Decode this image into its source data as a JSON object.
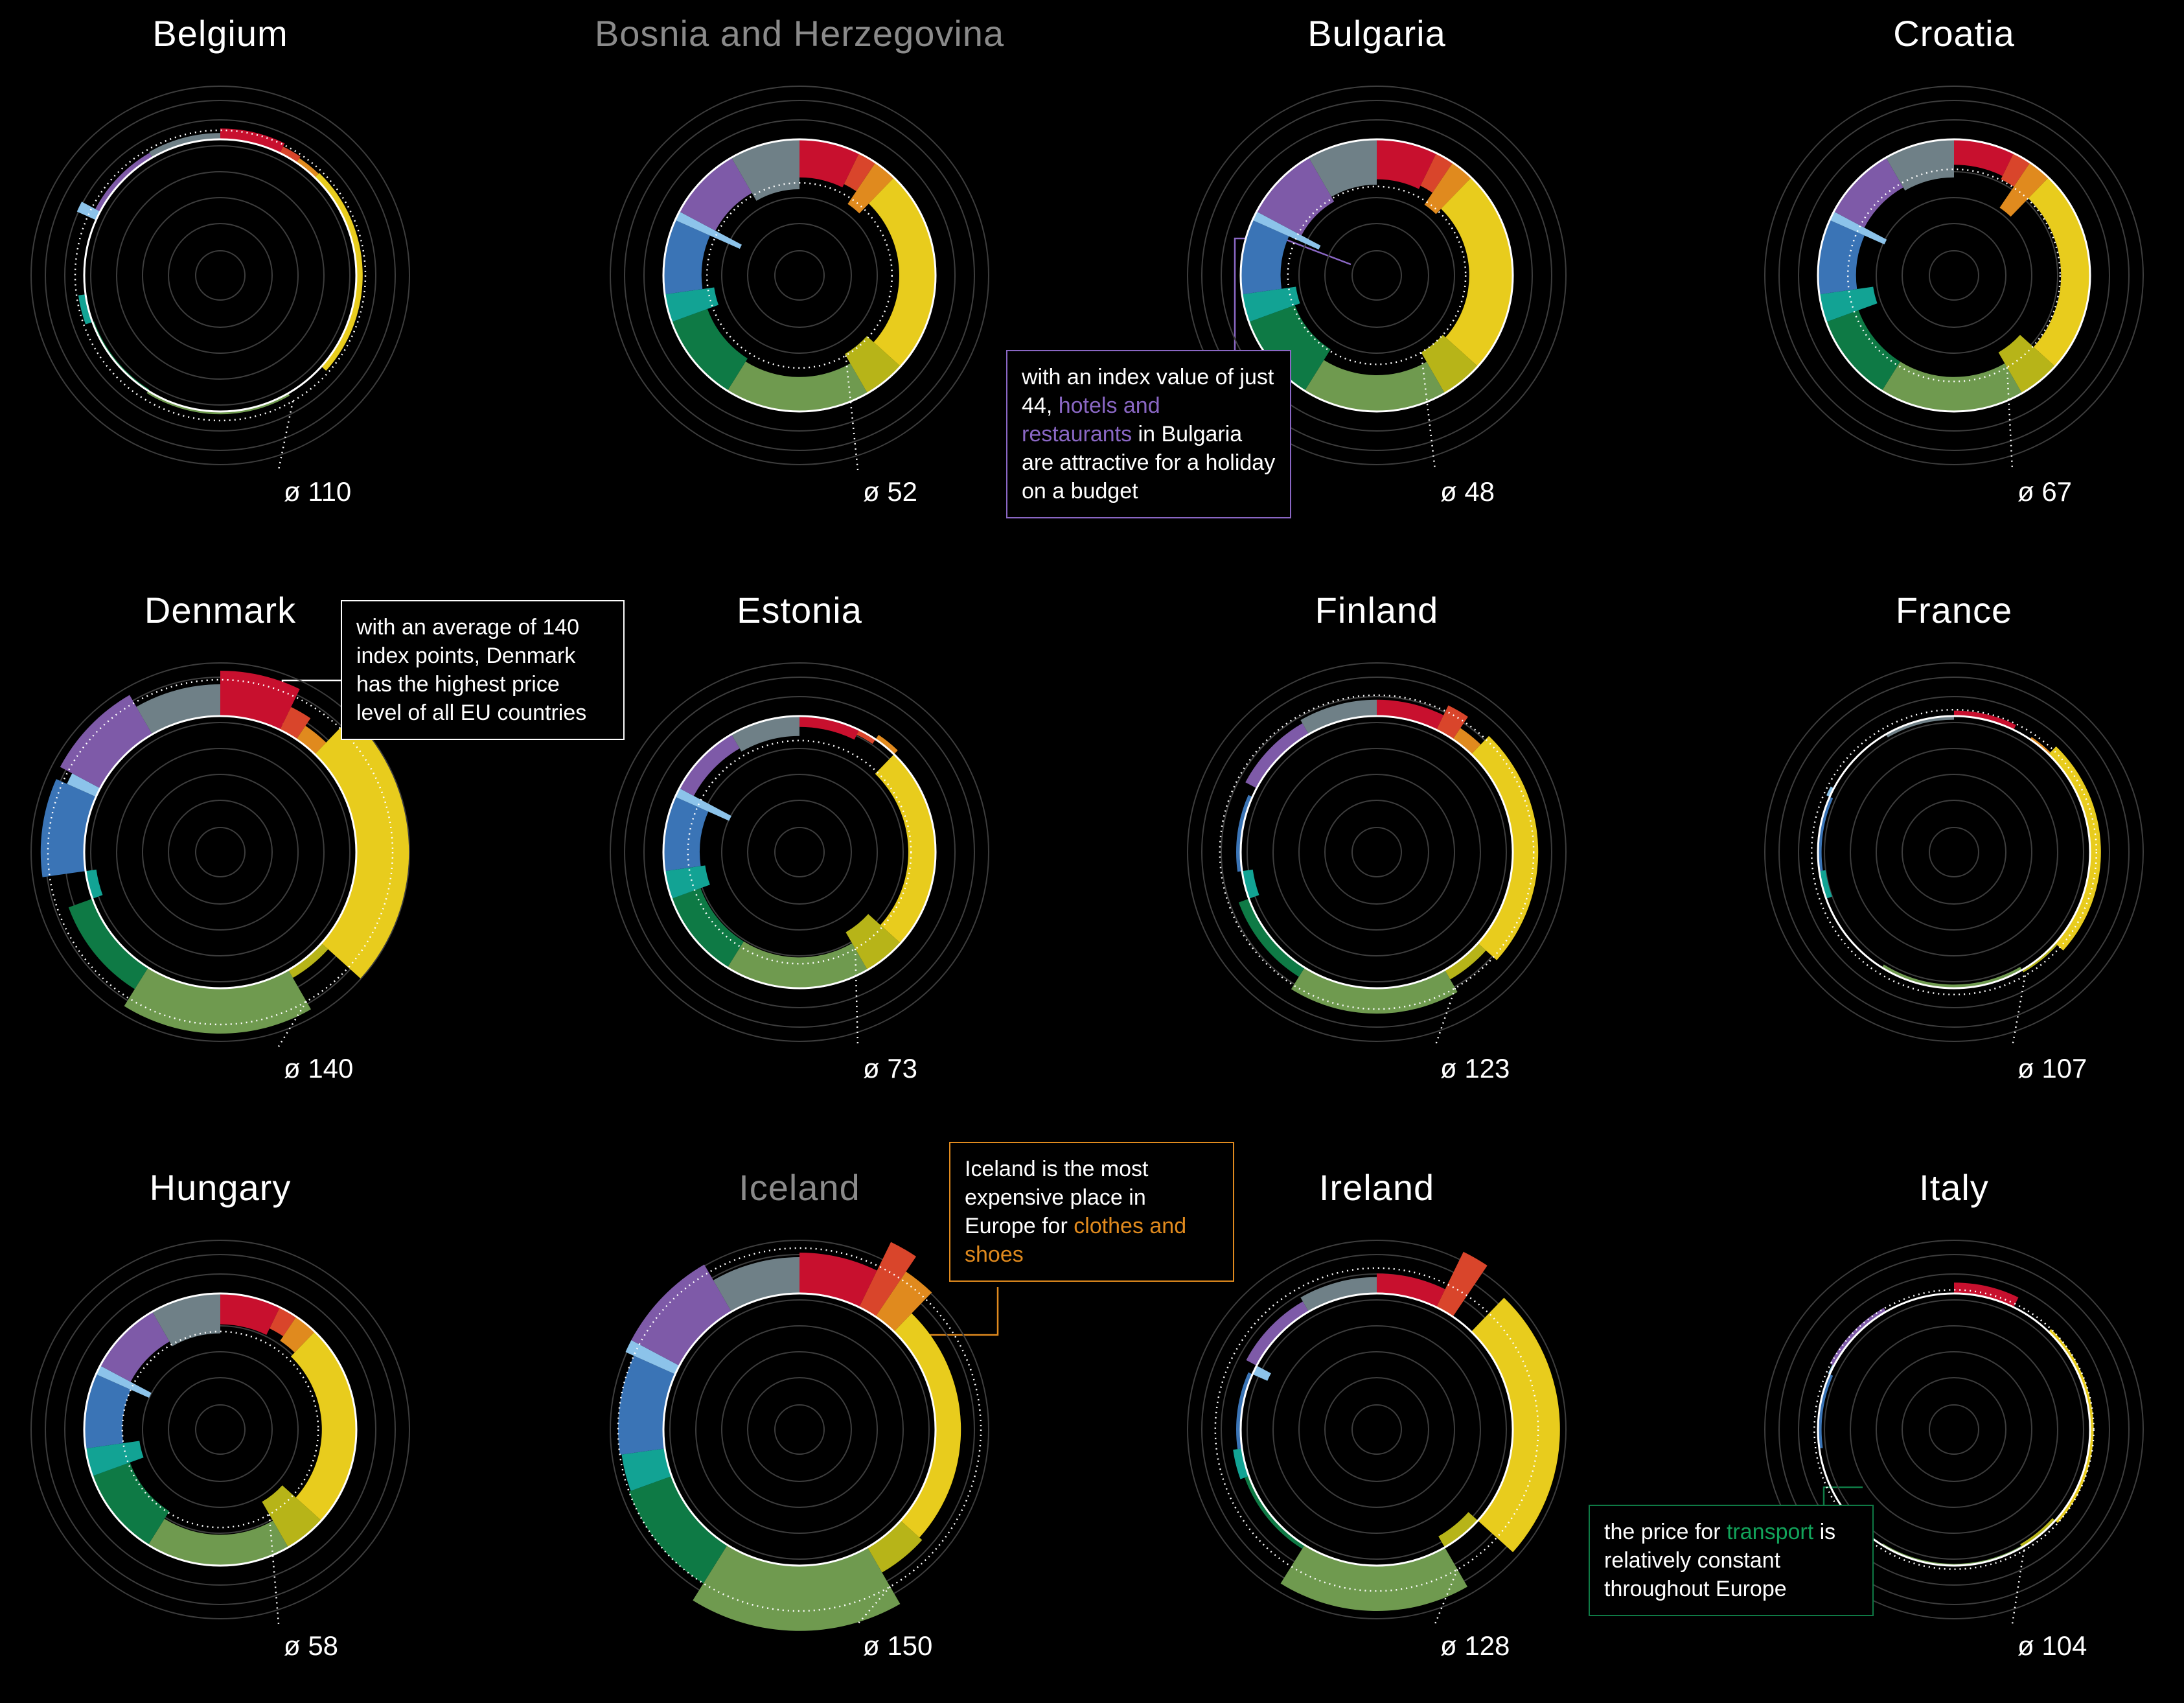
{
  "colors": {
    "food": "#c8102e",
    "alcohol": "#d9452b",
    "clothes": "#e08a1e",
    "housing": "#e8cc1d",
    "furnishings": "#b7b418",
    "health": "#6f9a4f",
    "transport": "#0e7a45",
    "communication": "#12a394",
    "recreation": "#3a74b6",
    "education": "#8cc3ea",
    "hotels": "#7e5aa8",
    "misc": "#6f8087"
  },
  "chart_data": [
    {
      "type": "radial-bar",
      "title": "Belgium",
      "title_dim": false,
      "avg_label": "ø 110",
      "average": 110,
      "values": [
        112,
        108,
        106,
        107,
        100,
        103,
        98,
        108,
        100,
        123,
        106,
        107
      ]
    },
    {
      "type": "radial-bar",
      "title": "Bosnia and Herzegovina",
      "title_dim": true,
      "avg_label": "ø 52",
      "average": 52,
      "values": [
        58,
        62,
        45,
        60,
        50,
        62,
        58,
        45,
        58,
        22,
        55,
        45
      ]
    },
    {
      "type": "radial-bar",
      "title": "Bulgaria",
      "title_dim": false,
      "avg_label": "ø 48",
      "average": 48,
      "values": [
        56,
        60,
        44,
        52,
        48,
        60,
        46,
        40,
        56,
        20,
        44,
        50
      ]
    },
    {
      "type": "radial-bar",
      "title": "Croatia",
      "title_dim": false,
      "avg_label": "ø 67",
      "average": 67,
      "values": [
        72,
        68,
        40,
        68,
        48,
        62,
        62,
        40,
        58,
        34,
        62,
        58
      ]
    },
    {
      "type": "radial-bar",
      "title": "Denmark",
      "title_dim": false,
      "avg_label": "ø 140",
      "average": 140,
      "values": [
        150,
        128,
        118,
        158,
        110,
        150,
        128,
        88,
        148,
        135,
        150,
        135
      ]
    },
    {
      "type": "radial-bar",
      "title": "Estonia",
      "title_dim": false,
      "avg_label": "ø 73",
      "average": 73,
      "values": [
        88,
        94,
        106,
        70,
        52,
        66,
        66,
        55,
        60,
        35,
        82,
        78
      ]
    },
    {
      "type": "radial-bar",
      "title": "Finland",
      "title_dim": false,
      "avg_label": "ø 123",
      "average": 123,
      "values": [
        118,
        130,
        115,
        128,
        112,
        128,
        112,
        88,
        105,
        100,
        114,
        118
      ]
    },
    {
      "type": "radial-bar",
      "title": "France",
      "title_dim": false,
      "avg_label": "ø 107",
      "average": 107,
      "values": [
        106,
        100,
        103,
        112,
        103,
        96,
        100,
        93,
        96,
        104,
        100,
        96
      ]
    },
    {
      "type": "radial-bar",
      "title": "Hungary",
      "title_dim": false,
      "avg_label": "ø 58",
      "average": 58,
      "values": [
        66,
        74,
        68,
        62,
        42,
        66,
        56,
        40,
        58,
        36,
        62,
        56
      ]
    },
    {
      "type": "radial-bar",
      "title": "Iceland",
      "title_dim": true,
      "avg_label": "ø 150",
      "average": 150,
      "values": [
        145,
        180,
        160,
        128,
        132,
        172,
        150,
        148,
        150,
        160,
        160,
        140
      ]
    },
    {
      "type": "radial-bar",
      "title": "Ireland",
      "title_dim": false,
      "avg_label": "ø 128",
      "average": 128,
      "values": [
        122,
        168,
        100,
        152,
        86,
        150,
        105,
        110,
        105,
        82,
        113,
        118
      ]
    },
    {
      "type": "radial-bar",
      "title": "Italy",
      "title_dim": false,
      "avg_label": "ø 104",
      "average": 104,
      "values": [
        112,
        100,
        100,
        104,
        96,
        98,
        100,
        100,
        96,
        102,
        105,
        100
      ]
    }
  ],
  "notes": [
    {
      "parts": [
        "with an index value of just 44, ",
        "hotels and restaurants",
        " in Bulgaria are attractive for a holiday on a budget"
      ],
      "accent": "#8a67c4"
    },
    {
      "parts": [
        "with an average of 140 index points, Denmark has the highest price level of all EU countries",
        "",
        ""
      ],
      "accent": "#ffffff"
    },
    {
      "parts": [
        "Iceland is the most expensive place in Europe for ",
        "clothes and shoes",
        ""
      ],
      "accent": "#e08a1e"
    },
    {
      "parts": [
        "the price for ",
        "transport",
        " is relatively constant throughout Europe"
      ],
      "accent": "#12a35a"
    }
  ]
}
